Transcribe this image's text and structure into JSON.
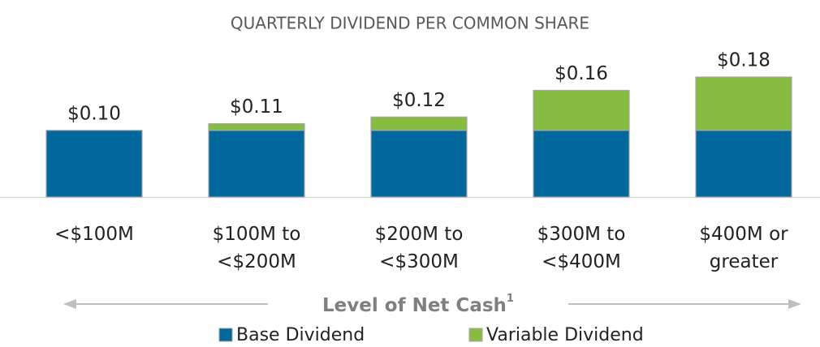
{
  "chart_data": {
    "type": "stacked_bar",
    "title": "QUARTERLY DIVIDEND PER COMMON SHARE",
    "categories": [
      "<$100M",
      "$100M to\n<$200M",
      "$200M to\n<$300M",
      "$300M to\n<$400M",
      "$400M or\ngreater"
    ],
    "series": [
      {
        "name": "Base Dividend",
        "color": "#00689c",
        "values": [
          0.1,
          0.1,
          0.1,
          0.1,
          0.1
        ]
      },
      {
        "name": "Variable Dividend",
        "color": "#86bd40",
        "values": [
          0,
          0.01,
          0.02,
          0.06,
          0.08
        ]
      }
    ],
    "totals": {
      "values": [
        0.1,
        0.11,
        0.12,
        0.16,
        0.18
      ],
      "value_labels": [
        "$0.10",
        "$0.11",
        "$0.12",
        "$0.16",
        "$0.18"
      ]
    },
    "xlabel": "Level of Net Cash",
    "xlabel_note": "1"
  }
}
